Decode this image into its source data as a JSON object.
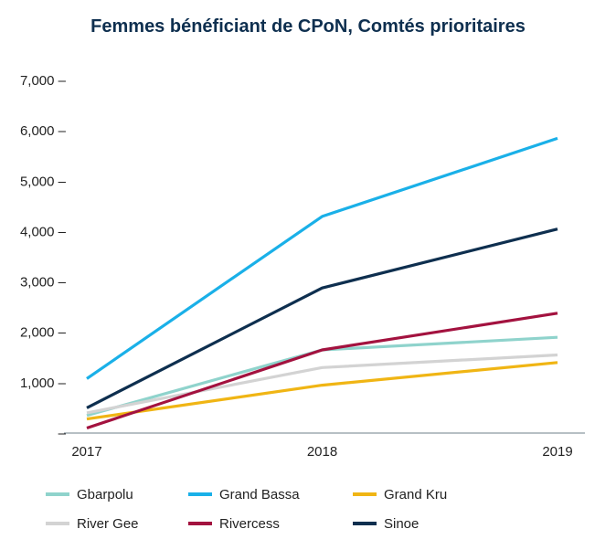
{
  "chart_data": {
    "type": "line",
    "title": "Femmes bénéficiant de CPoN, Comtés prioritaires",
    "xlabel": "",
    "ylabel": "",
    "x": [
      "2017",
      "2018",
      "2019"
    ],
    "ylim": [
      0,
      7000
    ],
    "yticks": [
      0,
      1000,
      2000,
      3000,
      4000,
      5000,
      6000,
      7000
    ],
    "ytick_labels": [
      "–",
      "1,000 –",
      "2,000 –",
      "3,000 –",
      "4,000 –",
      "5,000 –",
      "6,000 –",
      "7,000 –"
    ],
    "grid": false,
    "legend_position": "bottom",
    "series": [
      {
        "name": "Gbarpolu",
        "values": [
          350,
          1650,
          1900
        ],
        "color": "#8fd3cc"
      },
      {
        "name": "Grand Bassa",
        "values": [
          1080,
          4300,
          5850
        ],
        "color": "#1ab0e8"
      },
      {
        "name": "Grand Kru",
        "values": [
          280,
          950,
          1400
        ],
        "color": "#f0b514"
      },
      {
        "name": "River Gee",
        "values": [
          400,
          1300,
          1550
        ],
        "color": "#d3d3d3"
      },
      {
        "name": "Rivercess",
        "values": [
          100,
          1650,
          2380
        ],
        "color": "#a3123f"
      },
      {
        "name": "Sinoe",
        "values": [
          500,
          2880,
          4050
        ],
        "color": "#0e2f4f"
      }
    ]
  }
}
